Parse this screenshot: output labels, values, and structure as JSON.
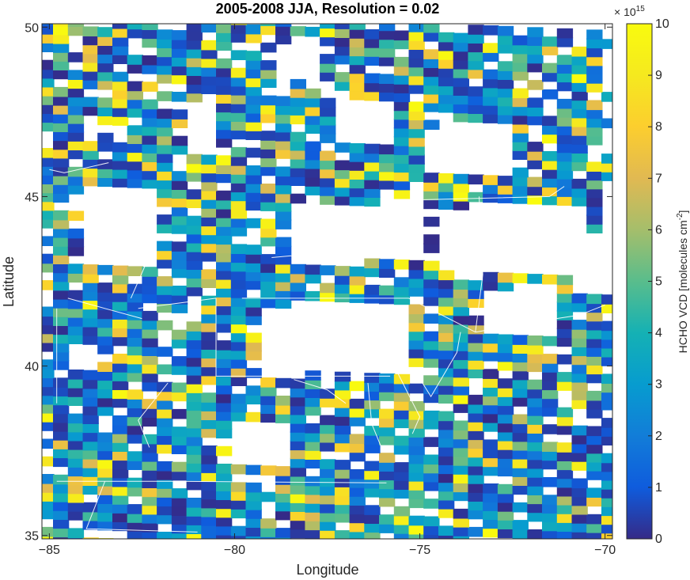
{
  "chart_data": {
    "type": "heatmap",
    "title": "2005-2008 JJA, Resolution = 0.02",
    "xlabel": "Longitude",
    "ylabel": "Latitude",
    "xlim": [
      -85.2,
      -69.8
    ],
    "ylim": [
      34.9,
      50.1
    ],
    "x_ticks": [
      -85,
      -80,
      -75,
      -70
    ],
    "x_tick_labels": [
      "-85",
      "-80",
      "-75",
      "-70"
    ],
    "y_ticks": [
      35,
      40,
      45,
      50
    ],
    "y_tick_labels": [
      "35",
      "40",
      "45",
      "50"
    ],
    "colorbar": {
      "label": "HCHO VCD [molecules cm",
      "label_superscript": "-2",
      "label_suffix": "]",
      "exponent_prefix": "× 10",
      "exponent": "15",
      "ticks": [
        0,
        1,
        2,
        3,
        4,
        5,
        6,
        7,
        8,
        9,
        10
      ],
      "tick_labels": [
        "0",
        "1",
        "2",
        "3",
        "4",
        "5",
        "6",
        "7",
        "8",
        "9",
        "10"
      ],
      "range": [
        0,
        10
      ],
      "colormap": "parula"
    },
    "value_units": "molecules cm^-2 (×10^15)",
    "grid": false,
    "coverage_note_gaps": [
      {
        "lon": [
          -84.2,
          -82.3
        ],
        "lat": [
          42.9,
          45.2
        ]
      },
      {
        "lon": [
          -78.6,
          -75.2
        ],
        "lat": [
          42.9,
          44.7
        ]
      },
      {
        "lon": [
          -74.8,
          -70.5
        ],
        "lat": [
          42.6,
          44.6
        ]
      },
      {
        "lon": [
          -79.4,
          -75.6
        ],
        "lat": [
          39.6,
          41.7
        ]
      },
      {
        "lon": [
          -73.4,
          -71.4
        ],
        "lat": [
          40.8,
          42.2
        ]
      },
      {
        "lon": [
          -80.3,
          -78.6
        ],
        "lat": [
          37.0,
          38.3
        ]
      },
      {
        "lon": [
          -84.6,
          -84.0
        ],
        "lat": [
          39.8,
          40.6
        ]
      },
      {
        "lon": [
          -79.2,
          -78.0
        ],
        "lat": [
          48.4,
          49.5
        ]
      },
      {
        "lon": [
          -77.5,
          -76.0
        ],
        "lat": [
          46.5,
          47.8
        ]
      },
      {
        "lon": [
          -74.8,
          -72.6
        ],
        "lat": [
          45.6,
          47.0
        ]
      },
      {
        "lon": [
          -71.2,
          -70.0
        ],
        "lat": [
          42.0,
          43.8
        ]
      },
      {
        "lon": [
          -81.6,
          -80.6
        ],
        "lat": [
          46.2,
          47.6
        ]
      }
    ]
  }
}
